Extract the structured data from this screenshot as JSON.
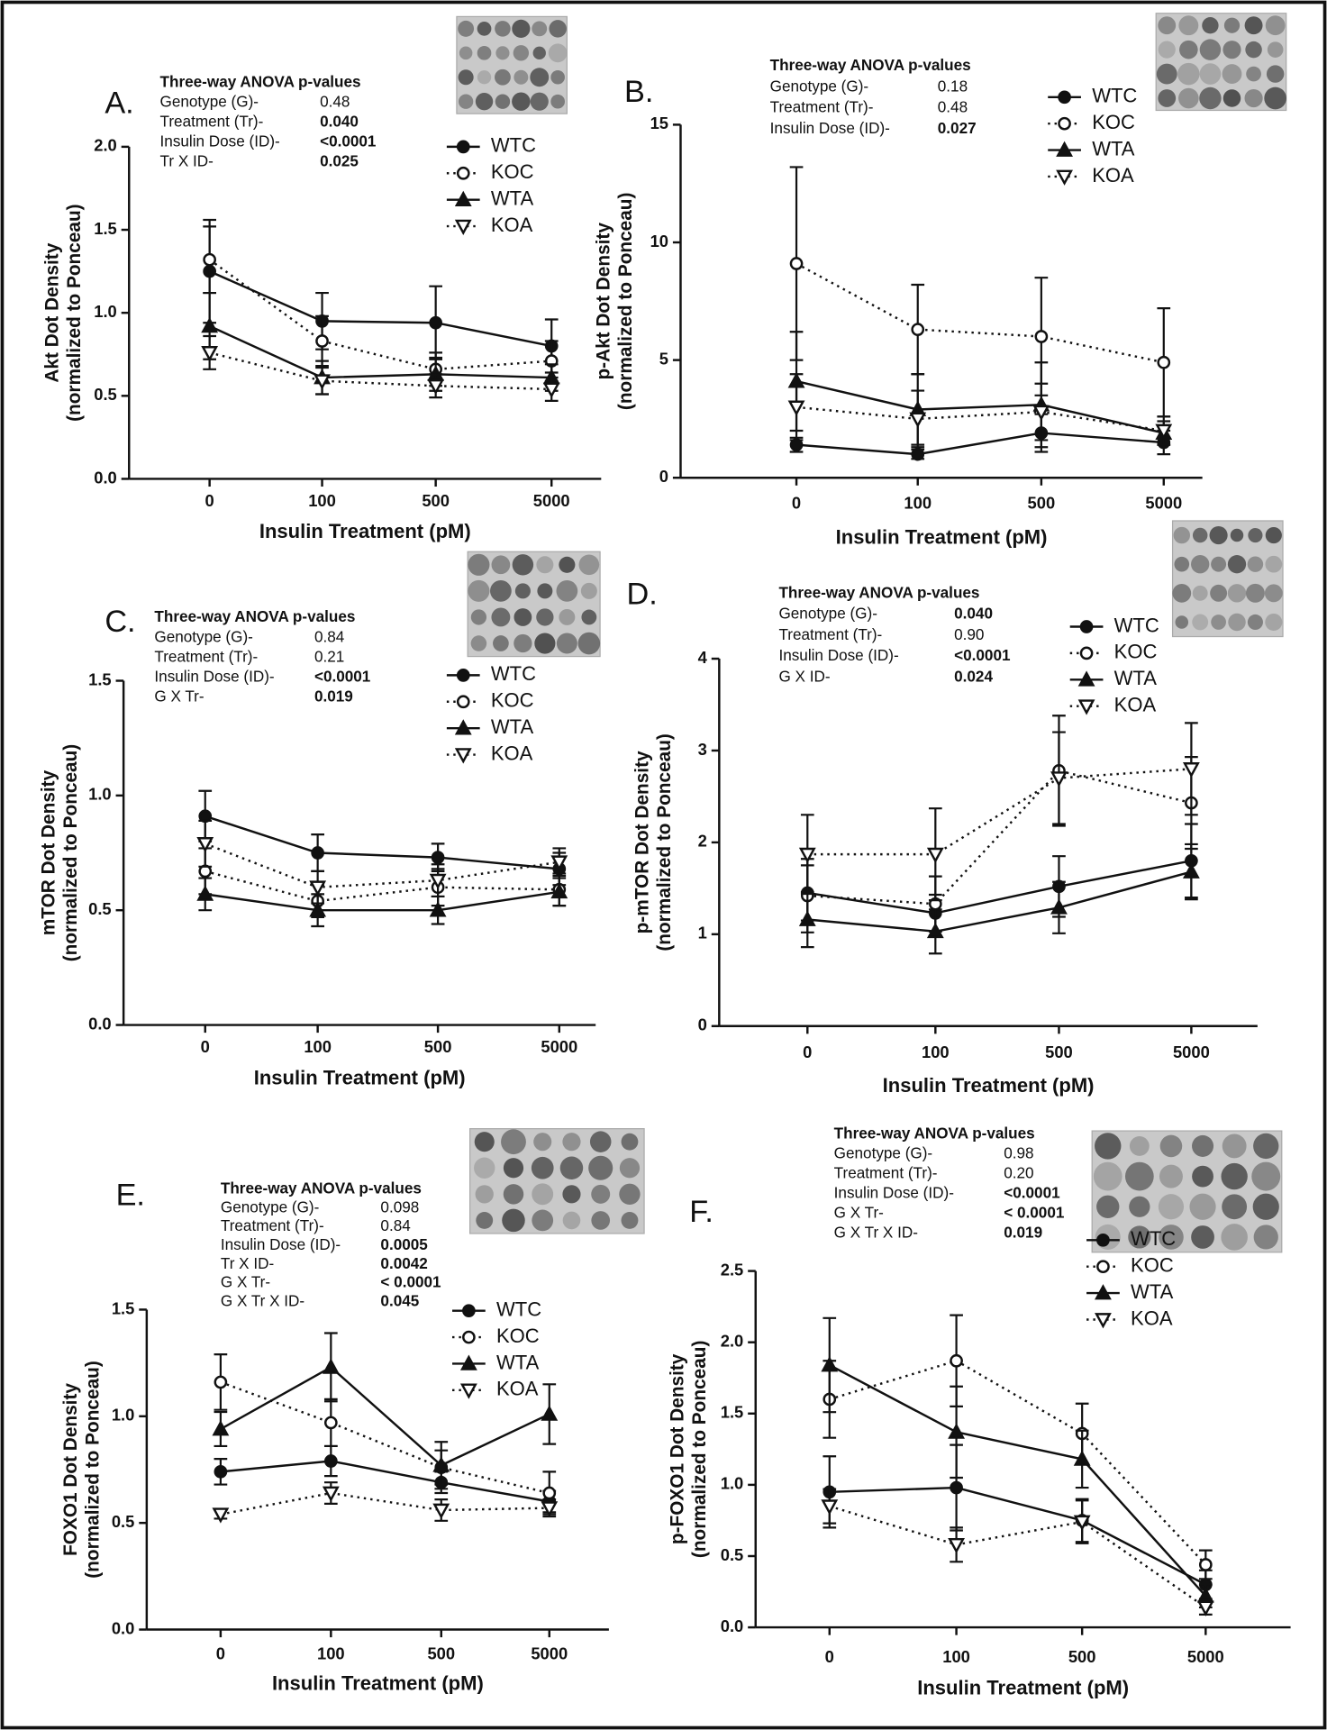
{
  "chart_data": [
    {
      "type": "line",
      "panel_label": "A.",
      "y_label": [
        "Akt Dot Density",
        "(normalized to Ponceau)"
      ],
      "x_label": "Insulin Treatment (pM)",
      "categories": [
        "0",
        "100",
        "500",
        "5000"
      ],
      "ylim": [
        0,
        2
      ],
      "yticks": [
        {
          "value": 0,
          "label": "0.0"
        },
        0.5,
        {
          "value": 1,
          "label": "1.0"
        },
        1.5,
        {
          "value": 2,
          "label": "2.0"
        }
      ],
      "annotation": {
        "title": "Three-way ANOVA p-values",
        "rows": [
          {
            "label": "Genotype (G)-",
            "value": "0.48",
            "bold": false
          },
          {
            "label": "Treatment (Tr)-",
            "value": "0.040",
            "bold": true
          },
          {
            "label": "Insulin Dose (ID)-",
            "value": "<0.0001",
            "bold": true
          },
          {
            "label": "Tr X ID-",
            "value": "0.025",
            "bold": true
          }
        ]
      },
      "series": [
        {
          "name": "WTC",
          "color": "#111111",
          "marker": "circle",
          "filled": true,
          "line_style": "solid",
          "values": [
            1.25,
            0.95,
            0.94,
            0.8
          ],
          "errors": [
            0.31,
            0.17,
            0.22,
            0.16
          ]
        },
        {
          "name": "KOC",
          "color": "#111111",
          "marker": "circle",
          "filled": false,
          "line_style": "dotted",
          "values": [
            1.32,
            0.83,
            0.66,
            0.71
          ],
          "errors": [
            0.2,
            0.15,
            0.1,
            0.12
          ]
        },
        {
          "name": "WTA",
          "color": "#111111",
          "marker": "triangle-up",
          "filled": true,
          "line_style": "solid",
          "values": [
            0.92,
            0.61,
            0.63,
            0.61
          ],
          "errors": [
            0.2,
            0.1,
            0.1,
            0.08
          ]
        },
        {
          "name": "KOA",
          "color": "#111111",
          "marker": "triangle-down",
          "filled": false,
          "line_style": "dotted",
          "values": [
            0.76,
            0.59,
            0.56,
            0.54
          ],
          "errors": [
            0.1,
            0.08,
            0.07,
            0.07
          ]
        }
      ]
    },
    {
      "type": "line",
      "panel_label": "B.",
      "y_label": [
        "p-Akt Dot Density",
        "(normalized to Ponceau)"
      ],
      "x_label": "Insulin Treatment (pM)",
      "categories": [
        "0",
        "100",
        "500",
        "5000"
      ],
      "ylim": [
        0,
        15
      ],
      "yticks": [
        0,
        5,
        10,
        15
      ],
      "annotation": {
        "title": "Three-way ANOVA p-values",
        "rows": [
          {
            "label": "Genotype (G)-",
            "value": "0.18",
            "bold": false
          },
          {
            "label": "Treatment (Tr)-",
            "value": "0.48",
            "bold": false
          },
          {
            "label": "Insulin Dose (ID)-",
            "value": "0.027",
            "bold": true
          }
        ]
      },
      "series": [
        {
          "name": "WTC",
          "color": "#111111",
          "marker": "circle",
          "filled": true,
          "line_style": "solid",
          "values": [
            1.4,
            1.0,
            1.9,
            1.5
          ],
          "errors": [
            0.3,
            0.2,
            0.8,
            0.5
          ]
        },
        {
          "name": "KOC",
          "color": "#111111",
          "marker": "circle",
          "filled": false,
          "line_style": "dotted",
          "values": [
            9.1,
            6.3,
            6.0,
            4.9
          ],
          "errors": [
            4.1,
            1.9,
            2.5,
            2.3
          ]
        },
        {
          "name": "WTA",
          "color": "#111111",
          "marker": "triangle-up",
          "filled": true,
          "line_style": "solid",
          "values": [
            4.1,
            2.9,
            3.1,
            1.9
          ],
          "errors": [
            2.1,
            1.5,
            1.8,
            0.5
          ]
        },
        {
          "name": "KOA",
          "color": "#111111",
          "marker": "triangle-down",
          "filled": false,
          "line_style": "dotted",
          "values": [
            3.0,
            2.5,
            2.8,
            2.0
          ],
          "errors": [
            1.4,
            1.2,
            1.2,
            0.6
          ]
        }
      ]
    },
    {
      "type": "line",
      "panel_label": "C.",
      "y_label": [
        "mTOR Dot Density",
        "(normalized to Ponceau)"
      ],
      "x_label": "Insulin Treatment (pM)",
      "categories": [
        "0",
        "100",
        "500",
        "5000"
      ],
      "ylim": [
        0,
        1.5
      ],
      "yticks": [
        {
          "value": 0,
          "label": "0.0"
        },
        0.5,
        {
          "value": 1,
          "label": "1.0"
        },
        1.5
      ],
      "annotation": {
        "title": "Three-way ANOVA p-values",
        "rows": [
          {
            "label": "Genotype (G)-",
            "value": "0.84",
            "bold": false
          },
          {
            "label": "Treatment (Tr)-",
            "value": "0.21",
            "bold": false
          },
          {
            "label": "Insulin Dose (ID)-",
            "value": "<0.0001",
            "bold": true
          },
          {
            "label": "G X Tr-",
            "value": "0.019",
            "bold": true
          }
        ]
      },
      "series": [
        {
          "name": "WTC",
          "color": "#111111",
          "marker": "circle",
          "filled": true,
          "line_style": "solid",
          "values": [
            0.91,
            0.75,
            0.73,
            0.68
          ],
          "errors": [
            0.11,
            0.08,
            0.06,
            0.07
          ]
        },
        {
          "name": "KOC",
          "color": "#111111",
          "marker": "circle",
          "filled": false,
          "line_style": "dotted",
          "values": [
            0.67,
            0.54,
            0.6,
            0.59
          ],
          "errors": [
            0.1,
            0.07,
            0.08,
            0.07
          ]
        },
        {
          "name": "WTA",
          "color": "#111111",
          "marker": "triangle-up",
          "filled": true,
          "line_style": "solid",
          "values": [
            0.57,
            0.5,
            0.5,
            0.58
          ],
          "errors": [
            0.07,
            0.07,
            0.06,
            0.06
          ]
        },
        {
          "name": "KOA",
          "color": "#111111",
          "marker": "triangle-down",
          "filled": false,
          "line_style": "dotted",
          "values": [
            0.79,
            0.6,
            0.63,
            0.71
          ],
          "errors": [
            0.1,
            0.07,
            0.07,
            0.06
          ]
        }
      ]
    },
    {
      "type": "line",
      "panel_label": "D.",
      "y_label": [
        "p-mTOR Dot Density",
        "(normalized to Ponceau)"
      ],
      "x_label": "Insulin Treatment (pM)",
      "categories": [
        "0",
        "100",
        "500",
        "5000"
      ],
      "ylim": [
        0,
        4
      ],
      "yticks": [
        0,
        1,
        2,
        3,
        4
      ],
      "annotation": {
        "title": "Three-way ANOVA p-values",
        "rows": [
          {
            "label": "Genotype (G)-",
            "value": "0.040",
            "bold": true
          },
          {
            "label": "Treatment  (Tr)-",
            "value": "0.90",
            "bold": false
          },
          {
            "label": "Insulin Dose (ID)-",
            "value": "<0.0001",
            "bold": true
          },
          {
            "label": "G X ID-",
            "value": "0.024",
            "bold": true
          }
        ]
      },
      "series": [
        {
          "name": "WTC",
          "color": "#111111",
          "marker": "circle",
          "filled": true,
          "line_style": "solid",
          "values": [
            1.45,
            1.23,
            1.52,
            1.8
          ],
          "errors": [
            0.3,
            0.2,
            0.33,
            0.4
          ]
        },
        {
          "name": "KOC",
          "color": "#111111",
          "marker": "circle",
          "filled": false,
          "line_style": "dotted",
          "values": [
            1.42,
            1.33,
            2.78,
            2.43
          ],
          "errors": [
            0.4,
            0.3,
            0.6,
            0.5
          ]
        },
        {
          "name": "WTA",
          "color": "#111111",
          "marker": "triangle-up",
          "filled": true,
          "line_style": "solid",
          "values": [
            1.16,
            1.03,
            1.29,
            1.68
          ],
          "errors": [
            0.3,
            0.24,
            0.28,
            0.3
          ]
        },
        {
          "name": "KOA",
          "color": "#111111",
          "marker": "triangle-down",
          "filled": false,
          "line_style": "dotted",
          "values": [
            1.87,
            1.87,
            2.7,
            2.8
          ],
          "errors": [
            0.43,
            0.5,
            0.5,
            0.5
          ]
        }
      ]
    },
    {
      "type": "line",
      "panel_label": "E.",
      "y_label": [
        "FOXO1 Dot Density",
        "(normalized to Ponceau)"
      ],
      "x_label": "Insulin Treatment (pM)",
      "categories": [
        "0",
        "100",
        "500",
        "5000"
      ],
      "ylim": [
        0,
        1.5
      ],
      "yticks": [
        {
          "value": 0,
          "label": "0.0"
        },
        0.5,
        {
          "value": 1,
          "label": "1.0"
        },
        1.5
      ],
      "annotation": {
        "title": "Three-way ANOVA p-values",
        "rows": [
          {
            "label": "Genotype (G)-",
            "value": "0.098",
            "bold": false
          },
          {
            "label": "Treatment  (Tr)-",
            "value": "0.84",
            "bold": false
          },
          {
            "label": "Insulin Dose (ID)-",
            "value": "0.0005",
            "bold": true
          },
          {
            "label": "Tr X  ID-",
            "value": "0.0042",
            "bold": true
          },
          {
            "label": "G X Tr-",
            "value": "< 0.0001",
            "bold": true
          },
          {
            "label": "G X Tr X ID-",
            "value": "0.045",
            "bold": true
          }
        ]
      },
      "series": [
        {
          "name": "WTC",
          "color": "#111111",
          "marker": "circle",
          "filled": true,
          "line_style": "solid",
          "values": [
            0.74,
            0.79,
            0.69,
            0.6
          ],
          "errors": [
            0.06,
            0.07,
            0.05,
            0.05
          ]
        },
        {
          "name": "KOC",
          "color": "#111111",
          "marker": "circle",
          "filled": false,
          "line_style": "dotted",
          "values": [
            1.16,
            0.97,
            0.76,
            0.64
          ],
          "errors": [
            0.13,
            0.11,
            0.08,
            0.1
          ]
        },
        {
          "name": "WTA",
          "color": "#111111",
          "marker": "triangle-up",
          "filled": true,
          "line_style": "solid",
          "values": [
            0.94,
            1.23,
            0.77,
            1.01
          ],
          "errors": [
            0.08,
            0.16,
            0.11,
            0.14
          ]
        },
        {
          "name": "KOA",
          "color": "#111111",
          "marker": "triangle-down",
          "filled": false,
          "line_style": "dotted",
          "values": [
            0.54,
            0.64,
            0.56,
            0.57
          ],
          "errors": [
            0.02,
            0.05,
            0.05,
            0.04
          ]
        }
      ]
    },
    {
      "type": "line",
      "panel_label": "F.",
      "y_label": [
        "p-FOXO1 Dot Density",
        "(normalized to Ponceau)"
      ],
      "x_label": "Insulin Treatment (pM)",
      "categories": [
        "0",
        "100",
        "500",
        "5000"
      ],
      "ylim": [
        0,
        2.5
      ],
      "yticks": [
        {
          "value": 0,
          "label": "0.0"
        },
        0.5,
        {
          "value": 1,
          "label": "1.0"
        },
        1.5,
        {
          "value": 2,
          "label": "2.0"
        },
        2.5
      ],
      "annotation": {
        "title": "Three-way ANOVA p-values",
        "rows": [
          {
            "label": "Genotype (G)-",
            "value": "0.98",
            "bold": false
          },
          {
            "label": "Treatment  (Tr)-",
            "value": "0.20",
            "bold": false
          },
          {
            "label": "Insulin Dose (ID)-",
            "value": "<0.0001",
            "bold": true
          },
          {
            "label": "G X Tr-",
            "value": "< 0.0001",
            "bold": true
          },
          {
            "label": "G X Tr X ID-",
            "value": "0.019",
            "bold": true
          }
        ]
      },
      "series": [
        {
          "name": "WTC",
          "color": "#111111",
          "marker": "circle",
          "filled": true,
          "line_style": "solid",
          "values": [
            0.95,
            0.98,
            0.75,
            0.3
          ],
          "errors": [
            0.25,
            0.3,
            0.15,
            0.1
          ]
        },
        {
          "name": "KOC",
          "color": "#111111",
          "marker": "circle",
          "filled": false,
          "line_style": "dotted",
          "values": [
            1.6,
            1.87,
            1.36,
            0.44
          ],
          "errors": [
            0.27,
            0.32,
            0.21,
            0.1
          ]
        },
        {
          "name": "WTA",
          "color": "#111111",
          "marker": "triangle-up",
          "filled": true,
          "line_style": "solid",
          "values": [
            1.84,
            1.37,
            1.18,
            0.22
          ],
          "errors": [
            0.33,
            0.32,
            0.2,
            0.08
          ]
        },
        {
          "name": "KOA",
          "color": "#111111",
          "marker": "triangle-down",
          "filled": false,
          "line_style": "dotted",
          "values": [
            0.85,
            0.58,
            0.74,
            0.14
          ],
          "errors": [
            0.12,
            0.12,
            0.15,
            0.05
          ]
        }
      ]
    }
  ]
}
